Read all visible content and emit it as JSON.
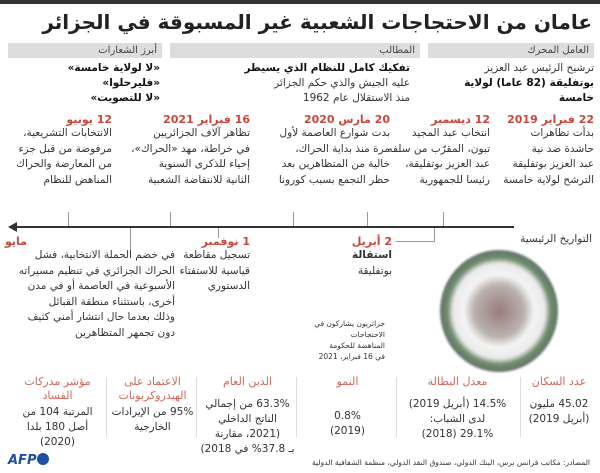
{
  "title": "عامان من الاحتجاجات الشعبية غير المسبوقة في الجزائر",
  "summary": {
    "trigger": {
      "label": "العامل المحرك",
      "lines": [
        "ترشيح الرئيس عبد العزيز",
        "بوتفليقة (82 عاما) لولاية خامسة"
      ]
    },
    "demands": {
      "label": "المطالب",
      "lines": [
        "تفكيك كامل للنظام الذي يسيطر",
        "عليه الجيش والذي حكم الجزائر",
        "منذ الاستقلال عام 1962"
      ]
    },
    "slogans": {
      "label": "أبرز الشعارات",
      "lines": [
        "«لا لولاية خامسة»",
        "«فليرحلوا»",
        "«لا للتصويت»"
      ]
    }
  },
  "timeline": {
    "axis_label": "التواريخ الرئيسية",
    "above": [
      {
        "date": "22 فبراير 2019",
        "text": [
          "بدأت تظاهرات",
          "حاشدة ضد نية",
          "عبد العزيز بوتفليقة",
          "الترشح لولاية خامسة"
        ]
      },
      {
        "date": "12 ديسمبر",
        "text": [
          "انتخاب عبد المجيد",
          "تبون، المقرّب من سلفه",
          "عبد العزيز بوتفليقة،",
          "رئيسا للجمهورية"
        ]
      },
      {
        "date": "20 مارس 2020",
        "text": [
          "بدت شوارع العاصمة لأول",
          "مرة منذ بداية الحراك،",
          "خالية من المتظاهرين بعد",
          "حظر التجمع بسبب كورونا"
        ]
      },
      {
        "date": "16 فبراير 2021",
        "text": [
          "تظاهر آلاف الجزائريين",
          "في خراطة، مهد «الحراك»،",
          "إحياء للذكرى السنوية",
          "الثانية للانتفاضة الشعبية"
        ]
      },
      {
        "date": "12 يونيو",
        "text": [
          "الانتخابات التشريعية،",
          "مرفوضة من قبل جزء",
          "من المعارضة والحراك",
          "المناهض للنظام"
        ]
      }
    ],
    "below": [
      {
        "date": "2 أبريل",
        "text": [
          "استقالة",
          "بوتفليقة"
        ]
      },
      {
        "date": "1 نوفمبر",
        "text": [
          "تسجيل مقاطعة",
          "قياسية للاستفتاء",
          "الدستوري"
        ]
      },
      {
        "date": "مايو",
        "text": [
          "في خضم الحملة الانتخابية، فشل",
          "الحراك الجزائري في تنظيم مسيراته",
          "الأسبوعية في العاصمة أو في مدن",
          "أخرى، باستثناء منطقة القبائل",
          "وذلك بعدما حال انتشار أمني كثيف",
          "دون تجمهر المتظاهرين"
        ]
      }
    ]
  },
  "photo_caption": [
    "جزائريون يشاركون في الاحتجاجات",
    "المناهضة للحكومة",
    "في 16 فبراير، 2021"
  ],
  "stats": [
    {
      "label": [
        "عدد السكان"
      ],
      "value": [
        "45.02 مليون",
        "(أبريل 2019)"
      ]
    },
    {
      "label": [
        "معدل البطالة"
      ],
      "value": [
        "14.5% (أبريل 2019)",
        "لدى الشباب:",
        "29.1% (2018)"
      ]
    },
    {
      "label": [
        "النمو"
      ],
      "value": [
        "0.8%",
        "(2019)"
      ]
    },
    {
      "label": [
        "الدين العام"
      ],
      "value": [
        "63.3% من إجمالي",
        "الناتج الداخلي",
        "(2021، مقارنة",
        "بـ 37.8% في 2018)"
      ]
    },
    {
      "label": [
        "الاعتماد على",
        "الهيدروكربونات"
      ],
      "value": [
        "95% من الإيرادات",
        "الخارجية"
      ]
    },
    {
      "label": [
        "مؤشر مدركات",
        "الفساد"
      ],
      "value": [
        "المرتبة 104 من",
        "أصل 180 بلدا (2020)"
      ]
    }
  ],
  "source": "المصادر: مكاتب فرانس برس، البنك الدولي، صندوق النقد الدولي، منظمة الشفافية الدولية",
  "logo": "AFP",
  "colors": {
    "accent": "#c8463a",
    "stat_label": "#d0665a",
    "header_bg": "#dddddd",
    "afp": "#1f4fa0"
  }
}
